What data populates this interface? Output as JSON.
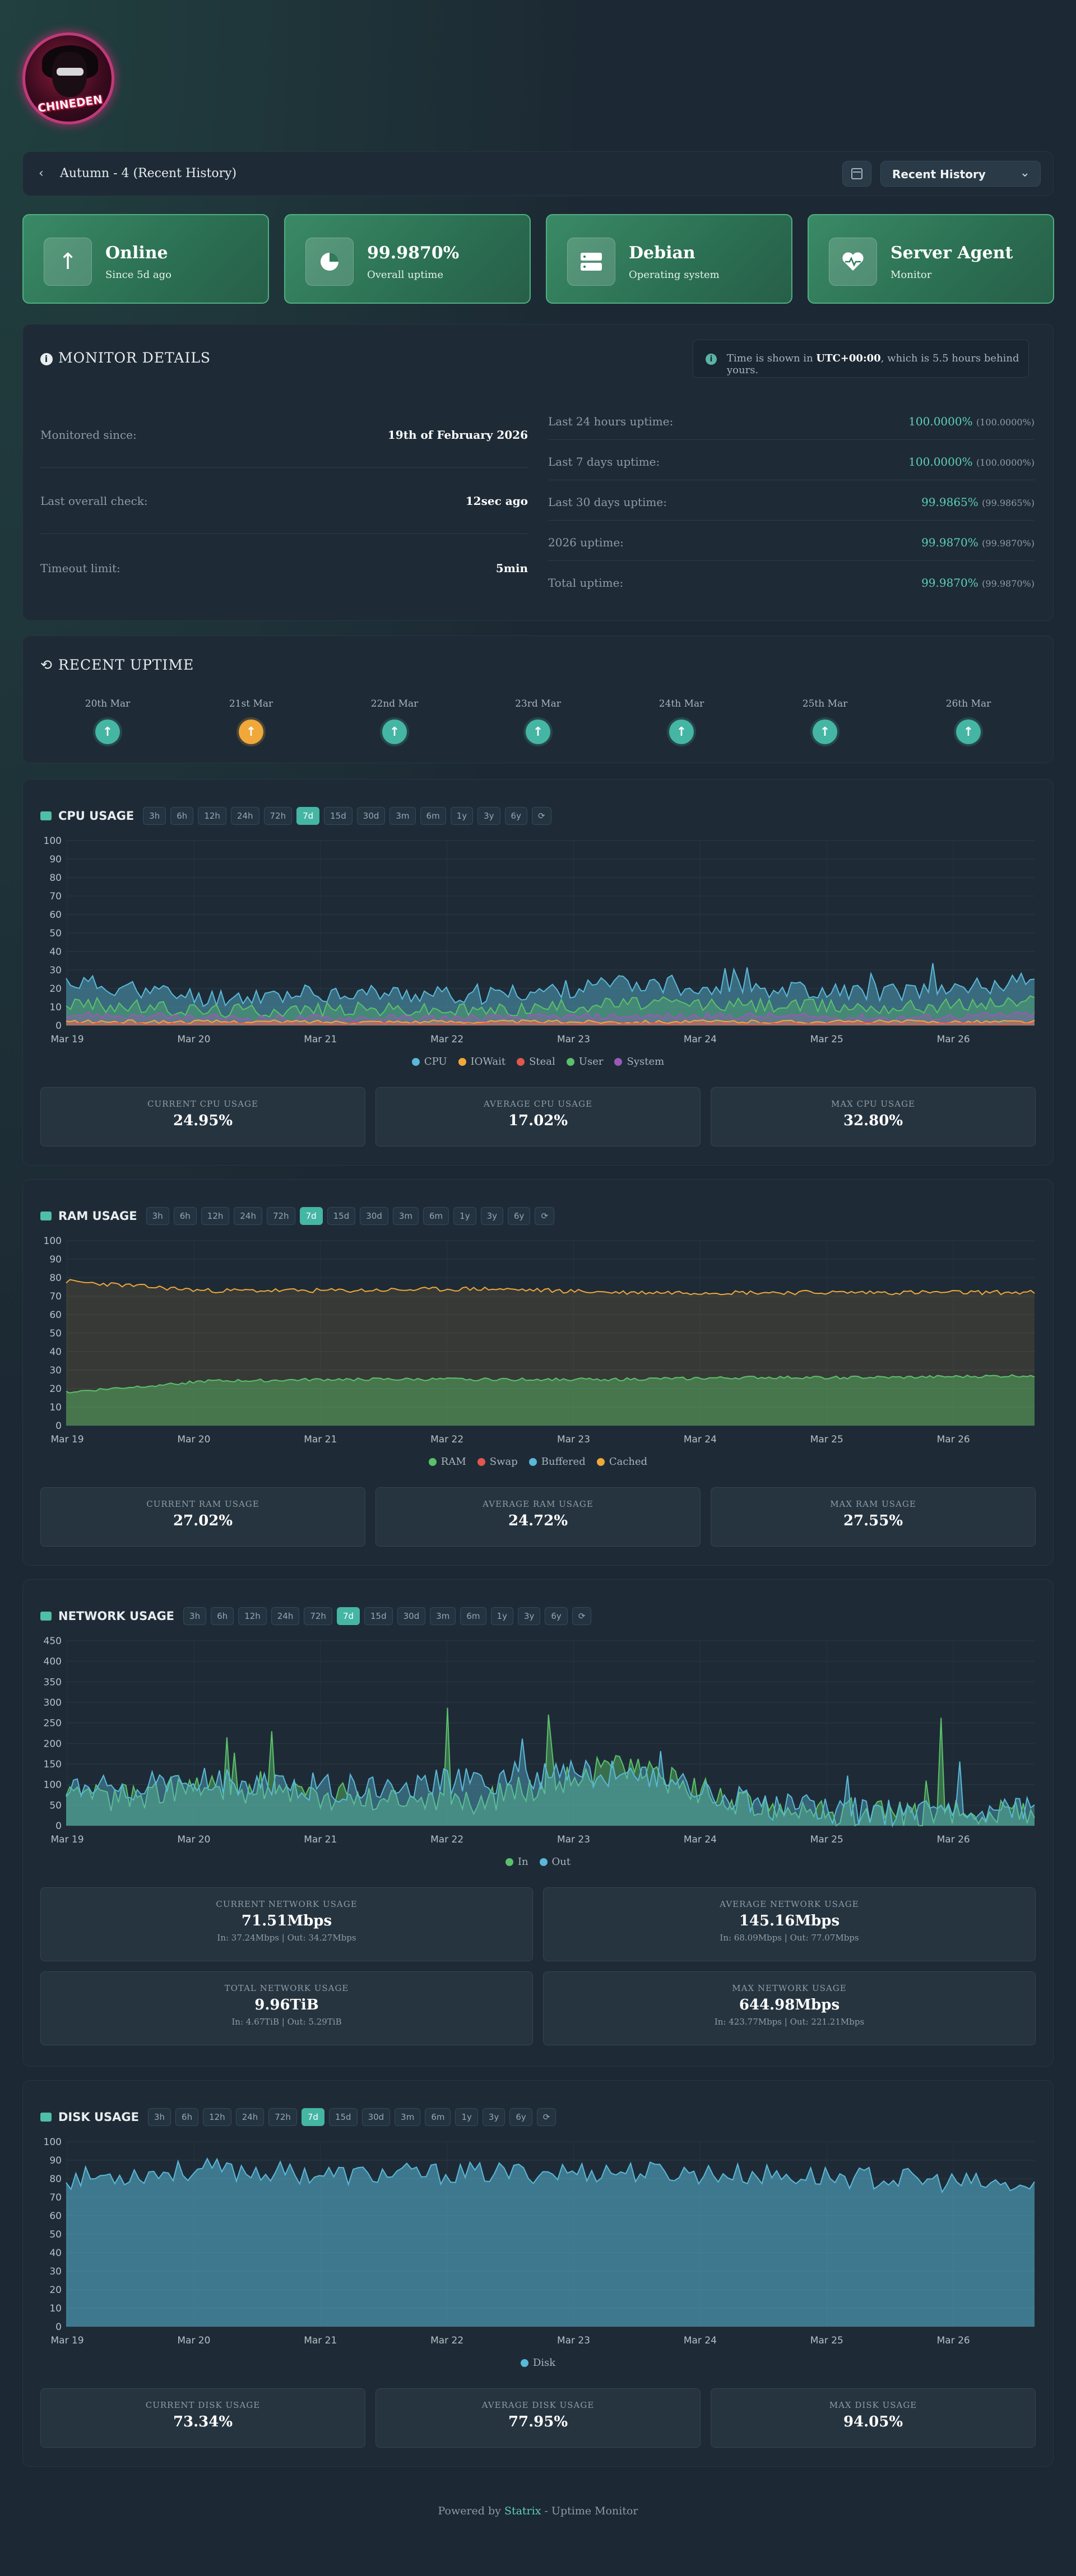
{
  "app": {
    "logo_text": "CHINEDEN"
  },
  "header": {
    "title": "Autumn - 4 (Recent History)",
    "back_icon": "chevron-left-icon",
    "calendar_icon": "calendar-icon",
    "view_select": "Recent History"
  },
  "stats": [
    {
      "main": "Online",
      "sub": "Since 5d ago",
      "icon": "arrow-up-icon"
    },
    {
      "main": "99.9870%",
      "sub": "Overall uptime",
      "icon": "pie-chart-icon"
    },
    {
      "main": "Debian",
      "sub": "Operating system",
      "icon": "server-icon"
    },
    {
      "main": "Server Agent",
      "sub": "Monitor",
      "icon": "heartbeat-icon"
    }
  ],
  "details": {
    "title": "MONITOR DETAILS",
    "tz_prefix": "Time is shown in ",
    "tz_bold": "UTC+00:00",
    "tz_suffix": ", which is 5.5 hours behind yours.",
    "left": [
      {
        "label": "Monitored since:",
        "value": "19th of February 2026"
      },
      {
        "label": "Last overall check:",
        "value": "12sec ago"
      },
      {
        "label": "Timeout limit:",
        "value": "5min"
      }
    ],
    "right": [
      {
        "label": "Last 24 hours uptime:",
        "value": "100.0000%",
        "meta": "(100.0000%)"
      },
      {
        "label": "Last 7 days uptime:",
        "value": "100.0000%",
        "meta": "(100.0000%)"
      },
      {
        "label": "Last 30 days uptime:",
        "value": "99.9865%",
        "meta": "(99.9865%)"
      },
      {
        "label": "2026 uptime:",
        "value": "99.9870%",
        "meta": "(99.9870%)"
      },
      {
        "label": "Total uptime:",
        "value": "99.9870%",
        "meta": "(99.9870%)"
      }
    ]
  },
  "recent": {
    "title": "RECENT UPTIME",
    "days": [
      {
        "date": "20th Mar",
        "status": "up",
        "color": "#45b6a3"
      },
      {
        "date": "21st Mar",
        "status": "partial",
        "color": "#f0a83a"
      },
      {
        "date": "22nd Mar",
        "status": "up",
        "color": "#45b6a3"
      },
      {
        "date": "23rd Mar",
        "status": "up",
        "color": "#45b6a3"
      },
      {
        "date": "24th Mar",
        "status": "up",
        "color": "#45b6a3"
      },
      {
        "date": "25th Mar",
        "status": "up",
        "color": "#45b6a3"
      },
      {
        "date": "26th Mar",
        "status": "up",
        "color": "#45b6a3"
      }
    ]
  },
  "ranges": [
    "3h",
    "6h",
    "12h",
    "24h",
    "72h",
    "7d",
    "15d",
    "30d",
    "3m",
    "6m",
    "1y",
    "3y",
    "6y"
  ],
  "active_range": "7d",
  "x_labels": [
    "Mar 19",
    "Mar 20",
    "Mar 21",
    "Mar 22",
    "Mar 23",
    "Mar 24",
    "Mar 25",
    "Mar 26"
  ],
  "cpu": {
    "title": "CPU USAGE",
    "legend": [
      {
        "name": "CPU",
        "color": "#5ab8d8"
      },
      {
        "name": "IOWait",
        "color": "#f0a83a"
      },
      {
        "name": "Steal",
        "color": "#e2574c"
      },
      {
        "name": "User",
        "color": "#5cc06a"
      },
      {
        "name": "System",
        "color": "#9b59b6"
      }
    ],
    "metrics": [
      {
        "title": "CURRENT CPU USAGE",
        "value": "24.95%"
      },
      {
        "title": "AVERAGE CPU USAGE",
        "value": "17.02%"
      },
      {
        "title": "MAX CPU USAGE",
        "value": "32.80%"
      }
    ]
  },
  "ram": {
    "title": "RAM USAGE",
    "legend": [
      {
        "name": "RAM",
        "color": "#5cc06a"
      },
      {
        "name": "Swap",
        "color": "#e2574c"
      },
      {
        "name": "Buffered",
        "color": "#5ab8d8"
      },
      {
        "name": "Cached",
        "color": "#f0a83a"
      }
    ],
    "metrics": [
      {
        "title": "CURRENT RAM USAGE",
        "value": "27.02%"
      },
      {
        "title": "AVERAGE RAM USAGE",
        "value": "24.72%"
      },
      {
        "title": "MAX RAM USAGE",
        "value": "27.55%"
      }
    ]
  },
  "net": {
    "title": "NETWORK USAGE",
    "legend": [
      {
        "name": "In",
        "color": "#5cc06a"
      },
      {
        "name": "Out",
        "color": "#5ab8d8"
      }
    ],
    "metrics": [
      {
        "title": "CURRENT NETWORK USAGE",
        "value": "71.51Mbps",
        "sub": "In: 37.24Mbps | Out: 34.27Mbps"
      },
      {
        "title": "AVERAGE NETWORK USAGE",
        "value": "145.16Mbps",
        "sub": "In: 68.09Mbps | Out: 77.07Mbps"
      },
      {
        "title": "TOTAL NETWORK USAGE",
        "value": "9.96TiB",
        "sub": "In: 4.67TiB | Out: 5.29TiB"
      },
      {
        "title": "MAX NETWORK USAGE",
        "value": "644.98Mbps",
        "sub": "In: 423.77Mbps | Out: 221.21Mbps"
      }
    ]
  },
  "disk": {
    "title": "DISK USAGE",
    "legend": [
      {
        "name": "Disk",
        "color": "#5ab8d8"
      }
    ],
    "metrics": [
      {
        "title": "CURRENT DISK USAGE",
        "value": "73.34%"
      },
      {
        "title": "AVERAGE DISK USAGE",
        "value": "77.95%"
      },
      {
        "title": "MAX DISK USAGE",
        "value": "94.05%"
      }
    ]
  },
  "chart_data": [
    {
      "type": "area",
      "title": "CPU USAGE",
      "x": [
        "Mar 19",
        "Mar 20",
        "Mar 21",
        "Mar 22",
        "Mar 23",
        "Mar 24",
        "Mar 25",
        "Mar 26"
      ],
      "ylim": [
        0,
        100
      ],
      "yticks": [
        0,
        10,
        20,
        30,
        40,
        50,
        60,
        70,
        80,
        90,
        100
      ],
      "series": [
        {
          "name": "CPU",
          "values": [
            24,
            15,
            18,
            16,
            22,
            20,
            18,
            24
          ]
        },
        {
          "name": "User",
          "values": [
            12,
            8,
            9,
            8,
            12,
            11,
            10,
            13
          ]
        },
        {
          "name": "System",
          "values": [
            6,
            4,
            4,
            4,
            5,
            5,
            4,
            6
          ]
        },
        {
          "name": "IOWait",
          "values": [
            2,
            2,
            2,
            2,
            2,
            2,
            2,
            2
          ]
        },
        {
          "name": "Steal",
          "values": [
            1,
            1,
            1,
            1,
            1,
            1,
            1,
            1
          ]
        }
      ]
    },
    {
      "type": "area",
      "title": "RAM USAGE",
      "x": [
        "Mar 19",
        "Mar 20",
        "Mar 21",
        "Mar 22",
        "Mar 23",
        "Mar 24",
        "Mar 25",
        "Mar 26"
      ],
      "ylim": [
        0,
        100
      ],
      "yticks": [
        0,
        10,
        20,
        30,
        40,
        50,
        60,
        70,
        80,
        90,
        100
      ],
      "series": [
        {
          "name": "Cached",
          "values": [
            78,
            73,
            73,
            74,
            72,
            72,
            72,
            72
          ]
        },
        {
          "name": "RAM",
          "values": [
            18,
            24,
            25,
            25,
            25,
            26,
            26,
            27
          ]
        }
      ]
    },
    {
      "type": "area",
      "title": "NETWORK USAGE",
      "x": [
        "Mar 19",
        "Mar 20",
        "Mar 21",
        "Mar 22",
        "Mar 23",
        "Mar 24",
        "Mar 25",
        "Mar 26"
      ],
      "ylim": [
        0,
        450
      ],
      "yticks": [
        0,
        50,
        100,
        150,
        200,
        250,
        300,
        350,
        400,
        450
      ],
      "series": [
        {
          "name": "In",
          "values": [
            60,
            90,
            70,
            60,
            150,
            40,
            30,
            30
          ]
        },
        {
          "name": "Out",
          "values": [
            80,
            110,
            90,
            110,
            130,
            50,
            30,
            40
          ]
        }
      ]
    },
    {
      "type": "area",
      "title": "DISK USAGE",
      "x": [
        "Mar 19",
        "Mar 20",
        "Mar 21",
        "Mar 22",
        "Mar 23",
        "Mar 24",
        "Mar 25",
        "Mar 26"
      ],
      "ylim": [
        0,
        100
      ],
      "yticks": [
        0,
        10,
        20,
        30,
        40,
        50,
        60,
        70,
        80,
        90,
        100
      ],
      "series": [
        {
          "name": "Disk",
          "values": [
            80,
            85,
            82,
            83,
            84,
            82,
            80,
            75
          ]
        }
      ]
    }
  ],
  "footer": {
    "prefix": "Powered by ",
    "brand": "Statrix",
    "suffix": " - Uptime Monitor"
  }
}
